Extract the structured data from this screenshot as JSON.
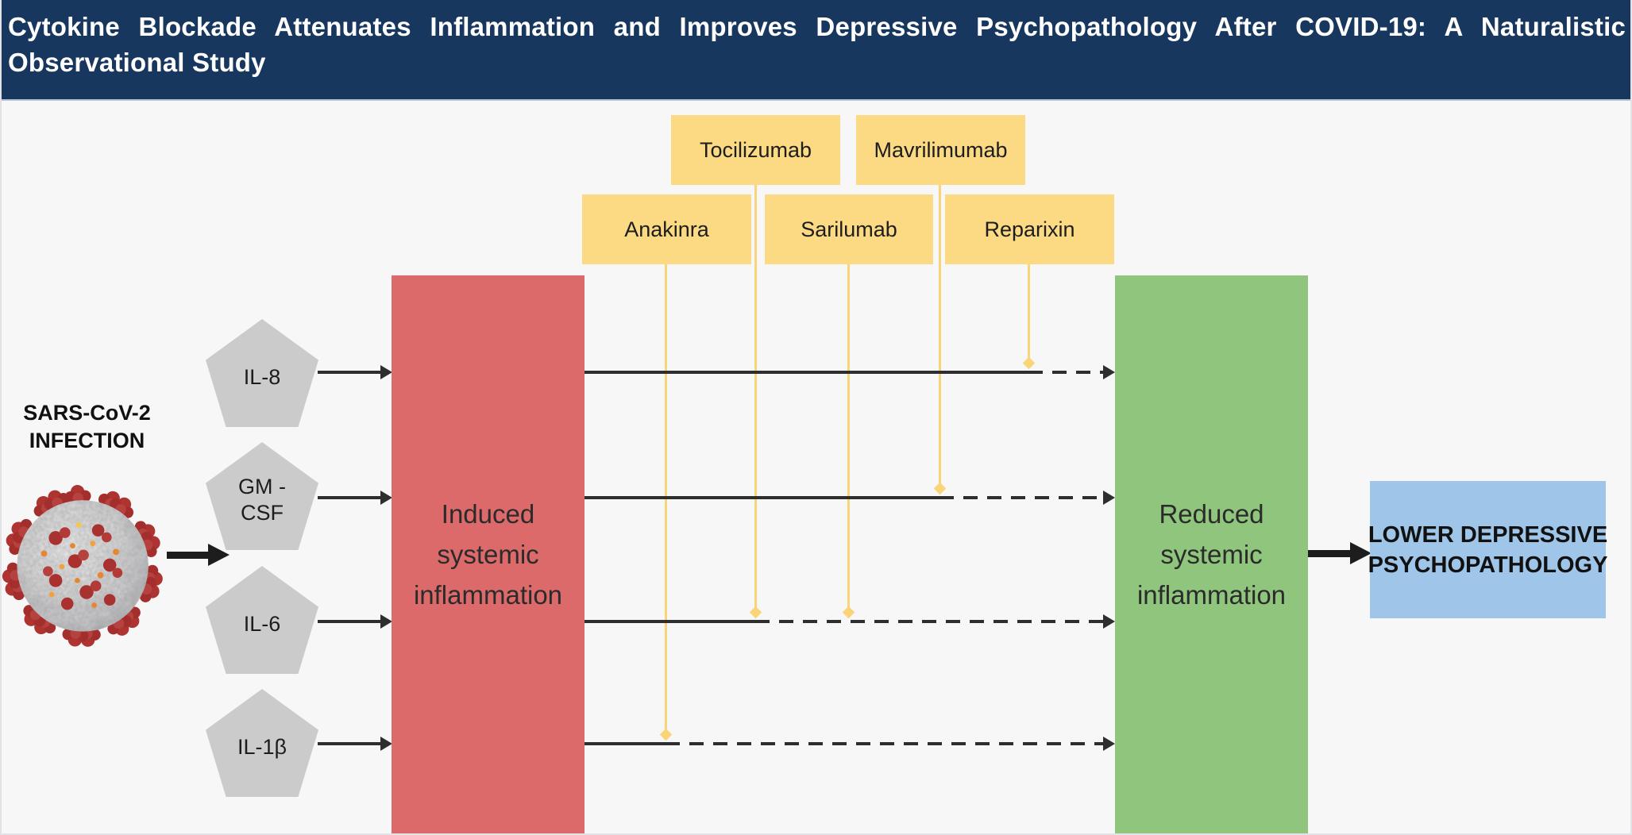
{
  "header": {
    "title_line1": "Cytokine Blockade Attenuates Inflammation and Improves Depressive Psychopathology After COVID-19: A Naturalistic",
    "title_line2": "Observational Study"
  },
  "source": {
    "label": "SARS-CoV-2 INFECTION"
  },
  "cytokines": [
    {
      "label": "IL-8"
    },
    {
      "label": "GM -\nCSF"
    },
    {
      "label": "IL-6"
    },
    {
      "label": "IL-1β"
    }
  ],
  "drugs": [
    {
      "label": "Tocilizumab"
    },
    {
      "label": "Mavrilimumab"
    },
    {
      "label": "Anakinra"
    },
    {
      "label": "Sarilumab"
    },
    {
      "label": "Reparixin"
    }
  ],
  "stages": {
    "induced": "Induced systemic inflammation",
    "reduced": "Reduced systemic inflammation",
    "outcome": "LOWER DEPRESSIVE PSYCHOPATHOLOGY"
  },
  "colors": {
    "header_bg": "#17375E",
    "induced_box": "#DC6A6A",
    "reduced_box": "#8FC57C",
    "outcome_box": "#9FC5E8",
    "drug_box": "#FBDA83",
    "cytokine_pentagon": "#CBCBCB",
    "connector_black": "#2E2E2E",
    "connector_yellow": "#F9D478"
  }
}
